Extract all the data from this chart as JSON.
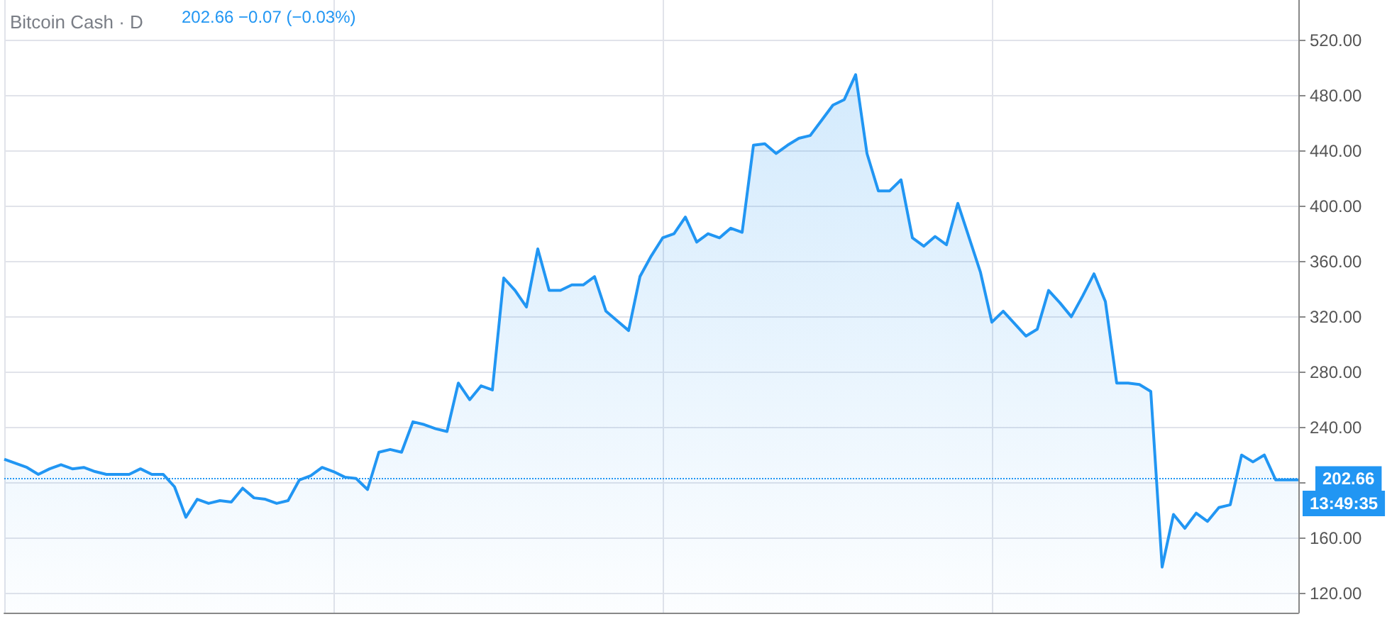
{
  "chart_data": {
    "type": "area",
    "title": "Bitcoin Cash · D",
    "annotations": [
      "202.66 −0.07 (−0.03%)",
      "13:49:35"
    ],
    "categories": [
      null,
      null,
      null,
      null,
      null,
      null,
      null,
      null,
      null,
      null,
      null,
      null,
      null,
      null,
      null,
      null,
      null,
      null,
      null,
      null,
      null,
      null,
      null,
      null,
      null,
      null,
      null,
      null,
      null,
      null,
      null,
      null,
      null,
      null,
      null,
      null,
      null,
      null,
      null,
      null,
      null,
      null,
      null,
      null,
      null,
      null,
      null,
      null,
      null,
      null,
      null,
      null,
      null,
      null,
      null,
      null,
      null,
      null,
      null,
      null,
      null,
      null,
      null,
      null,
      null,
      null,
      null,
      null,
      null,
      null,
      null,
      null,
      null,
      null,
      null,
      null,
      null,
      null,
      null,
      null,
      null,
      null,
      null,
      null,
      null,
      null,
      null,
      null,
      null,
      null,
      null,
      null,
      null,
      null,
      null,
      null,
      null,
      null,
      null,
      null,
      null,
      null,
      null,
      null,
      null,
      null,
      null,
      null,
      null,
      null,
      null,
      null,
      null,
      null,
      null
    ],
    "series": [
      {
        "color": "#2196f3",
        "values": [
          217,
          214,
          211,
          206,
          210,
          213,
          210,
          211,
          208,
          206,
          206,
          206,
          210,
          206,
          206,
          197,
          175,
          188,
          185,
          187,
          186,
          196,
          189,
          188,
          185,
          187,
          202,
          205,
          211,
          208,
          204,
          203,
          195,
          222,
          224,
          222,
          244,
          242,
          239,
          237,
          272,
          260,
          270,
          267,
          348,
          339,
          327,
          369,
          339,
          339,
          343,
          343,
          349,
          324,
          317,
          310,
          349,
          364,
          377,
          380,
          392,
          374,
          380,
          377,
          384,
          381,
          444,
          445,
          438,
          444,
          449,
          451,
          462,
          473,
          477,
          495,
          438,
          411,
          411,
          419,
          377,
          371,
          378,
          372,
          402,
          377,
          352,
          316,
          324,
          315,
          306,
          311,
          339,
          330,
          320,
          335,
          351,
          331,
          272,
          272,
          271,
          266,
          139,
          177,
          167,
          178,
          172,
          182,
          184,
          220,
          215,
          220,
          202,
          202,
          202
        ]
      }
    ],
    "ylim": [
      106,
      549
    ],
    "yticks": [
      {
        "value": 120,
        "label": "120.00"
      },
      {
        "value": 160,
        "label": "160.00"
      },
      {
        "value": 200,
        "label": null
      },
      {
        "value": 240,
        "label": "240.00"
      },
      {
        "value": 280,
        "label": "280.00"
      },
      {
        "value": 320,
        "label": "320.00"
      },
      {
        "value": 360,
        "label": "360.00"
      },
      {
        "value": 400,
        "label": "400.00"
      },
      {
        "value": 440,
        "label": "440.00"
      },
      {
        "value": 480,
        "label": "480.00"
      },
      {
        "value": 520,
        "label": "520.00"
      }
    ],
    "ref_lines": [
      {
        "axis": "y",
        "value": 202.66,
        "label": "202.66",
        "color": "#2196f3",
        "line_style": "dotted"
      }
    ],
    "grid": true,
    "marker": "none",
    "line_style": "solid"
  }
}
